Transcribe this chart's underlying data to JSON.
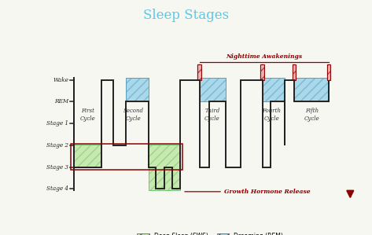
{
  "title": "Sleep Stages",
  "title_color": "#5bc8e8",
  "background_color": "#f7f7f2",
  "y_labels": [
    "Wake",
    "REM",
    "Stage 1",
    "Stage 2",
    "Stage 3",
    "Stage 4"
  ],
  "line_color": "#222222",
  "rem_facecolor": "#a8d8ea",
  "rem_edgecolor": "#5a9fc0",
  "deep_facecolor": "#c7e9b0",
  "deep_edgecolor": "#74c476",
  "nighttime_color": "#8b0000",
  "growth_color": "#8b0000",
  "cycle_label_color": "#333333",
  "WAKE": 5,
  "REM": 4,
  "S1": 3,
  "S2": 2,
  "S3": 1,
  "S4": 0
}
